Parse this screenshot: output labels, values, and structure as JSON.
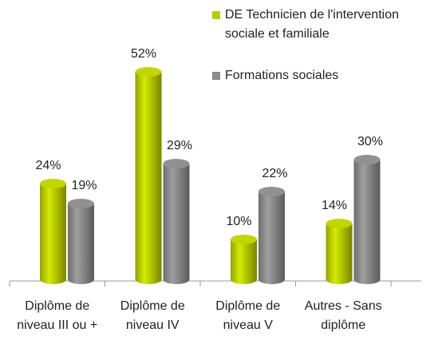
{
  "chart_data": {
    "type": "bar",
    "categories": [
      "Diplôme de niveau III ou +",
      "Diplôme de niveau IV",
      "Diplôme de niveau V",
      "Autres - Sans diplôme"
    ],
    "series": [
      {
        "name": "DE Technicien de l'intervention sociale et familiale",
        "color": "#b8cc00",
        "values": [
          24,
          52,
          10,
          14
        ],
        "value_labels": [
          "24%",
          "52%",
          "10%",
          "14%"
        ]
      },
      {
        "name": "Formations sociales",
        "color": "#8a8a8a",
        "values": [
          19,
          29,
          22,
          30
        ],
        "value_labels": [
          "19%",
          "29%",
          "22%",
          "30%"
        ]
      }
    ],
    "legend": "top-right"
  }
}
